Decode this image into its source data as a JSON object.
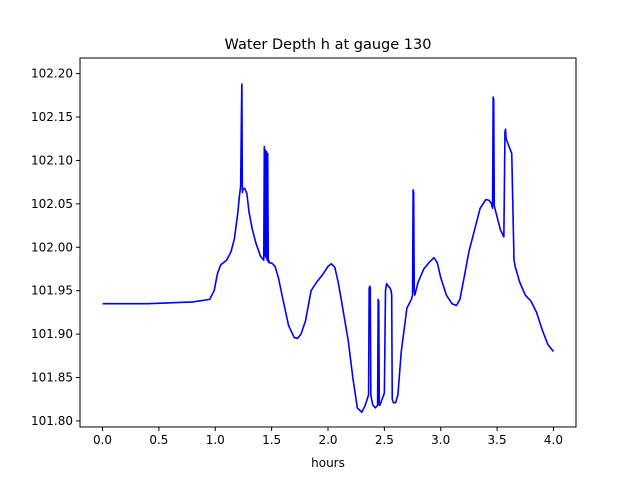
{
  "chart_data": {
    "type": "line",
    "title": "Water Depth h at gauge 130",
    "xlabel": "hours",
    "ylabel": "",
    "xlim": [
      -0.2,
      4.2
    ],
    "ylim": [
      101.793,
      102.218
    ],
    "xticks": [
      0.0,
      0.5,
      1.0,
      1.5,
      2.0,
      2.5,
      3.0,
      3.5,
      4.0
    ],
    "xtick_labels": [
      "0.0",
      "0.5",
      "1.0",
      "1.5",
      "2.0",
      "2.5",
      "3.0",
      "3.5",
      "4.0"
    ],
    "yticks": [
      101.8,
      101.85,
      101.9,
      101.95,
      102.0,
      102.05,
      102.1,
      102.15,
      102.2
    ],
    "ytick_labels": [
      "101.80",
      "101.85",
      "101.90",
      "101.95",
      "102.00",
      "102.05",
      "102.10",
      "102.15",
      "102.20"
    ],
    "grid": false,
    "line_color": "#0000ff",
    "series": [
      {
        "x": [
          0.0,
          0.2,
          0.4,
          0.6,
          0.8,
          0.9,
          0.95,
          0.99,
          1.02,
          1.05,
          1.1,
          1.14,
          1.17,
          1.2,
          1.215,
          1.225,
          1.235,
          1.236,
          1.24,
          1.241,
          1.245,
          1.26,
          1.28,
          1.3,
          1.33,
          1.36,
          1.4,
          1.43,
          1.435,
          1.44,
          1.445,
          1.45,
          1.455,
          1.46,
          1.465,
          1.47,
          1.475,
          1.48,
          1.5,
          1.53,
          1.56,
          1.6,
          1.65,
          1.7,
          1.73,
          1.76,
          1.8,
          1.85,
          1.9,
          1.95,
          2.0,
          2.03,
          2.06,
          2.09,
          2.12,
          2.15,
          2.18,
          2.22,
          2.26,
          2.3,
          2.33,
          2.36,
          2.365,
          2.37,
          2.375,
          2.38,
          2.385,
          2.39,
          2.395,
          2.4,
          2.42,
          2.44,
          2.445,
          2.45,
          2.455,
          2.46,
          2.48,
          2.5,
          2.51,
          2.52,
          2.53,
          2.55,
          2.56,
          2.565,
          2.57,
          2.58,
          2.6,
          2.62,
          2.65,
          2.7,
          2.74,
          2.75,
          2.755,
          2.76,
          2.765,
          2.77,
          2.8,
          2.85,
          2.9,
          2.94,
          2.97,
          3.0,
          3.05,
          3.1,
          3.14,
          3.17,
          3.2,
          3.25,
          3.3,
          3.35,
          3.4,
          3.43,
          3.45,
          3.46,
          3.465,
          3.47,
          3.475,
          3.48,
          3.5,
          3.53,
          3.56,
          3.57,
          3.575,
          3.58,
          3.6,
          3.63,
          3.65,
          3.655,
          3.66,
          3.7,
          3.75,
          3.8,
          3.85,
          3.9,
          3.95,
          4.0
        ],
        "y": [
          101.935,
          101.935,
          101.935,
          101.936,
          101.937,
          101.939,
          101.94,
          101.95,
          101.97,
          101.98,
          101.985,
          101.995,
          102.01,
          102.04,
          102.06,
          102.07,
          102.185,
          102.188,
          102.065,
          102.063,
          102.067,
          102.068,
          102.062,
          102.04,
          102.02,
          102.005,
          101.99,
          101.985,
          102.116,
          101.99,
          102.112,
          101.988,
          102.11,
          101.985,
          102.108,
          101.983,
          101.985,
          101.982,
          101.982,
          101.978,
          101.965,
          101.94,
          101.91,
          101.896,
          101.895,
          101.9,
          101.915,
          101.95,
          101.96,
          101.968,
          101.978,
          101.981,
          101.977,
          101.96,
          101.938,
          101.915,
          101.892,
          101.85,
          101.815,
          101.81,
          101.818,
          101.83,
          101.953,
          101.955,
          101.954,
          101.83,
          101.826,
          101.823,
          101.82,
          101.818,
          101.815,
          101.818,
          101.94,
          101.937,
          101.818,
          101.818,
          101.825,
          101.832,
          101.95,
          101.958,
          101.956,
          101.953,
          101.95,
          101.945,
          101.825,
          101.821,
          101.821,
          101.83,
          101.88,
          101.93,
          101.94,
          101.945,
          102.066,
          102.063,
          101.95,
          101.945,
          101.96,
          101.975,
          101.983,
          101.988,
          101.982,
          101.965,
          101.945,
          101.935,
          101.933,
          101.94,
          101.96,
          101.995,
          102.02,
          102.045,
          102.055,
          102.054,
          102.05,
          102.045,
          102.173,
          102.17,
          102.048,
          102.045,
          102.035,
          102.02,
          102.012,
          102.133,
          102.136,
          102.125,
          102.118,
          102.108,
          101.985,
          101.982,
          101.978,
          101.96,
          101.945,
          101.938,
          101.925,
          101.905,
          101.888,
          101.88
        ]
      }
    ]
  }
}
